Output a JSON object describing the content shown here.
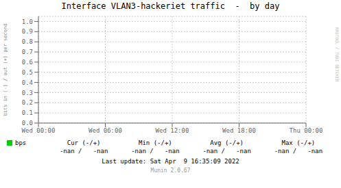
{
  "chart_data": {
    "type": "line",
    "title": "Interface VLAN3-hackeriet traffic  -  by day",
    "y_label": "bits in (-) / out (+) per second",
    "categories": [
      "Wed 00:00",
      "Wed 06:00",
      "Wed 12:00",
      "Wed 18:00",
      "Thu 00:00"
    ],
    "series": [
      {
        "name": "bps",
        "color": "#00cc00",
        "values": [
          null,
          null,
          null,
          null,
          null
        ]
      }
    ],
    "ylim": [
      0.0,
      1.05
    ],
    "yticks": [
      {
        "value": 0.0,
        "label": "0.0"
      },
      0.1,
      0.2,
      0.3,
      0.4,
      0.5,
      0.6,
      0.7,
      0.8,
      0.9,
      {
        "value": 1.0,
        "label": "1.0"
      }
    ],
    "grid": true,
    "legend": "bottom",
    "annotations": [
      "Cur (-/+)",
      "Min (-/+)",
      "Avg (-/+)",
      "Max (-/+)",
      "-nan /   -nan",
      "-nan /   -nan",
      "-nan /   -nan",
      "-nan /   -nan",
      "Last update: Sat Apr  9 16:35:09 2022",
      "Munin 2.0.67",
      "RRDTOOL / TOBI OETIKER"
    ]
  }
}
